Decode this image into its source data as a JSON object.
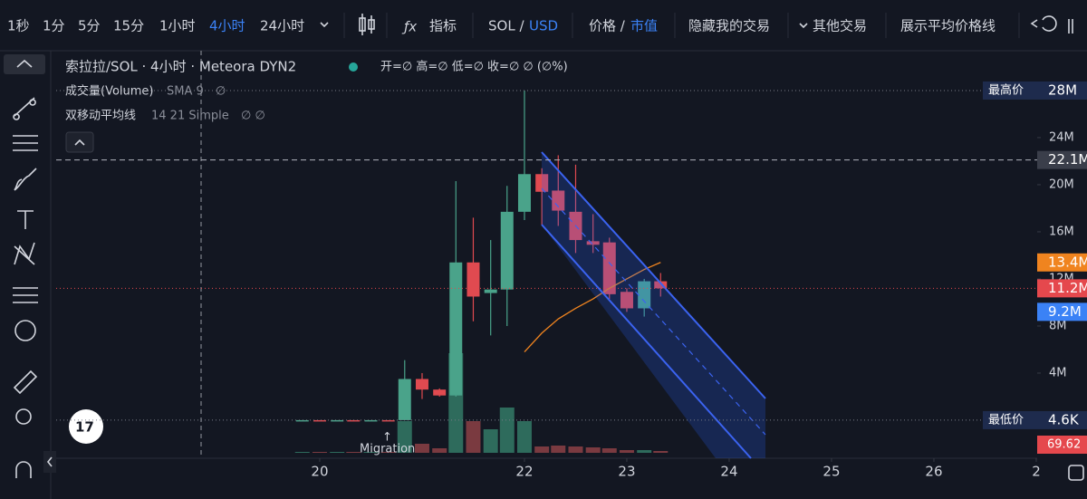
{
  "toolbar": {
    "intervals": [
      "1秒",
      "1分",
      "5分",
      "15分",
      "1小时",
      "4小时",
      "24小时"
    ],
    "active_interval": 5,
    "indicators": "指标",
    "pair_base": "SOL /",
    "pair_quote": "USD",
    "price_mode": "价格 /",
    "cap_mode": "市值",
    "hide_trades": "隐藏我的交易",
    "other_trades": "其他交易",
    "avg_line": "展示平均价格线"
  },
  "legend": {
    "title": "索拉拉/SOL · 4小时 · Meteora DYN2",
    "ohlc": "开=∅  高=∅  低=∅  收=∅  ∅ (∅%)",
    "volume_name": "成交量(Volume)",
    "volume_params": "SMA 9",
    "volume_value": "∅",
    "ma_name": "双移动平均线",
    "ma_params": "14 21 Simple",
    "ma_values": "∅ ∅"
  },
  "migration": "Migration",
  "volume_label": "69.62",
  "chart_data": {
    "type": "candlestick",
    "x": [
      19.83,
      20.0,
      20.17,
      20.33,
      20.5,
      20.67,
      20.83,
      21.0,
      21.17,
      21.33,
      21.5,
      21.67,
      21.83,
      22.0,
      22.17,
      22.33,
      22.5,
      22.67,
      22.83,
      23.0,
      23.17,
      23.33
    ],
    "open": [
      0.0045,
      0.0046,
      0.0045,
      0.0046,
      0.0045,
      0.0046,
      0.0046,
      3.5,
      2.6,
      2.1,
      13.4,
      10.8,
      11.1,
      17.7,
      20.9,
      19.5,
      17.7,
      15.2,
      15.1,
      10.9,
      9.5,
      11.8
    ],
    "high": [
      0.0046,
      0.0046,
      0.0046,
      0.0046,
      0.0046,
      0.0046,
      5.1,
      4.0,
      2.7,
      20.3,
      17.2,
      15.3,
      19.9,
      28,
      21.4,
      22.5,
      21.7,
      17.5,
      15.5,
      11.2,
      12.0,
      12.5
    ],
    "low": [
      0.0045,
      0.0045,
      0.0045,
      0.0045,
      0.0045,
      0.0045,
      0.0046,
      1.8,
      2.0,
      2.0,
      8.4,
      7.2,
      8.0,
      17,
      16.6,
      16.5,
      14.2,
      14.2,
      10.3,
      9.2,
      8.8,
      10.5
    ],
    "close": [
      0.0046,
      0.0045,
      0.0046,
      0.0045,
      0.0046,
      0.0045,
      3.5,
      2.6,
      2.1,
      13.4,
      10.5,
      11.1,
      17.7,
      20.9,
      19.4,
      17.8,
      15.3,
      14.9,
      10.7,
      9.5,
      11.8,
      11.2
    ],
    "volume": [
      1,
      1,
      1,
      1,
      1,
      1,
      35,
      10,
      5,
      110,
      35,
      26,
      50,
      35,
      7,
      8,
      7,
      6,
      5,
      3,
      3,
      2
    ],
    "volume_lim": [
      0,
      444
    ],
    "up_color": "#4aa38a",
    "down_color": "#e04a50",
    "up_volume_color": "#2e6b5c",
    "down_volume_color": "#7a3a40",
    "ma": {
      "color": "#f0841f",
      "values": [
        null,
        null,
        null,
        null,
        null,
        null,
        null,
        null,
        null,
        null,
        null,
        null,
        null,
        5.8,
        7.4,
        8.6,
        9.5,
        10.3,
        11.2,
        12.0,
        12.8,
        13.4
      ]
    },
    "xlim": [
      17.425,
      27.009
    ],
    "ylim": [
      -2.77,
      31.38
    ],
    "xticks": [
      20,
      22,
      23,
      24,
      25,
      26,
      {
        "value": 27,
        "label": "2"
      }
    ],
    "yticks": [
      {
        "value": 4,
        "label": "4M"
      },
      {
        "value": 8,
        "label": "8M"
      },
      {
        "value": 12,
        "label": "12M"
      },
      {
        "value": 16,
        "label": "16M"
      },
      {
        "value": 20,
        "label": "20M"
      },
      {
        "value": 24,
        "label": "24M"
      }
    ],
    "price_labels": [
      {
        "text": "最高价",
        "value_label": "28M",
        "value": 28,
        "color": "#1e2b4d",
        "line": "dotted"
      },
      {
        "value_label": "22.1M",
        "value": 22.1,
        "color": "#3a3e4a",
        "line": "dashed"
      },
      {
        "value_label": "13.4M",
        "value": 13.4,
        "color": "#f0841f",
        "line": "none"
      },
      {
        "value_label": "11.2M",
        "value": 11.2,
        "color": "#e5484d",
        "line": "dotted-red"
      },
      {
        "value_label": "9.2M",
        "value": 9.2,
        "color": "#3b82f6",
        "line": "none"
      },
      {
        "text": "最低价",
        "value_label": "4.6K",
        "value": 0.0046,
        "color": "#1e2b4d",
        "line": "dotted"
      }
    ]
  }
}
